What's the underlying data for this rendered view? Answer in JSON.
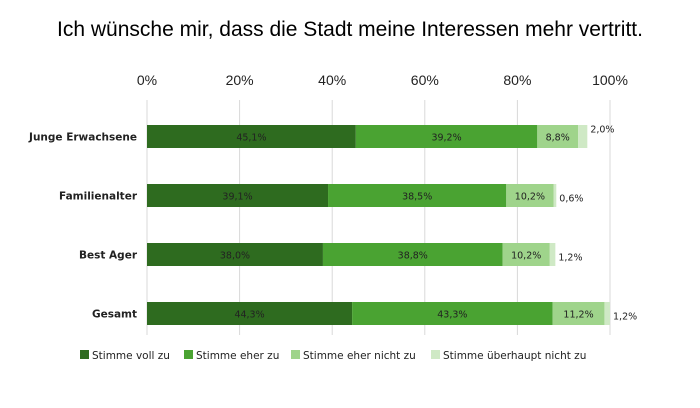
{
  "chart_data": {
    "type": "bar",
    "orientation": "horizontal",
    "stacked": true,
    "title": "Ich wünsche mir, dass die Stadt meine Interessen mehr vertritt.",
    "categories": [
      "Junge Erwachsene",
      "Familienalter",
      "Best Ager",
      "Gesamt"
    ],
    "series": [
      {
        "name": "Stimme voll zu",
        "color": "#2e6b1f",
        "values": [
          45.1,
          39.1,
          38.0,
          44.3
        ],
        "labels": [
          "45,1%",
          "39,1%",
          "38,0%",
          "44,3%"
        ]
      },
      {
        "name": "Stimme eher zu",
        "color": "#4aa332",
        "values": [
          39.2,
          38.5,
          38.8,
          43.3
        ],
        "labels": [
          "39,2%",
          "38,5%",
          "38,8%",
          "43,3%"
        ]
      },
      {
        "name": "Stimme eher nicht zu",
        "color": "#9fd48b",
        "values": [
          8.8,
          10.2,
          10.2,
          11.2
        ],
        "labels": [
          "8,8%",
          "10,2%",
          "10,2%",
          "11,2%"
        ]
      },
      {
        "name": "Stimme überhaupt nicht zu",
        "color": "#cfe9c5",
        "values": [
          2.0,
          0.6,
          1.2,
          1.2
        ],
        "labels": [
          "2,0%",
          "0,6%",
          "1,2%",
          "1,2%"
        ]
      }
    ],
    "xlim": [
      0,
      100
    ],
    "xticks": [
      "0%",
      "20%",
      "40%",
      "60%",
      "80%",
      "100%"
    ],
    "xaxis_position": "top",
    "grid": true,
    "legend_position": "bottom"
  }
}
